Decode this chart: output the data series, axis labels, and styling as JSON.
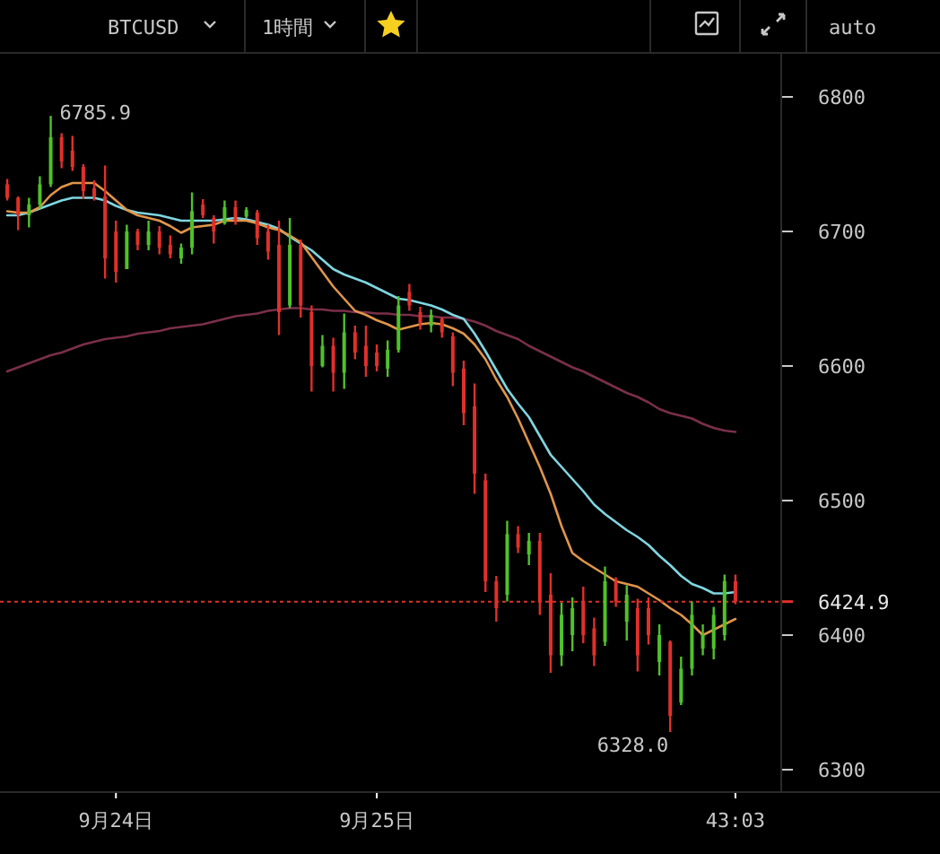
{
  "chart_data": {
    "type": "candlestick",
    "title": "BTCUSD",
    "categories": [
      null,
      null,
      null,
      null,
      null,
      null,
      null,
      null,
      null,
      null,
      "9月24日",
      null,
      null,
      null,
      null,
      null,
      null,
      null,
      null,
      null,
      null,
      null,
      null,
      null,
      null,
      null,
      null,
      null,
      null,
      null,
      null,
      null,
      null,
      null,
      "9月25日",
      null,
      null,
      null,
      null,
      null,
      null,
      null,
      null,
      null,
      null,
      null,
      null,
      null,
      null,
      null,
      null,
      null,
      null,
      null,
      null,
      null,
      null,
      null,
      null,
      null,
      null,
      null,
      null,
      null,
      null,
      null,
      null,
      "43:03"
    ],
    "ohlc": [
      [
        6735,
        6739,
        6723,
        6725
      ],
      [
        6725,
        6726,
        6701,
        6712
      ],
      [
        6712,
        6725,
        6703,
        6720
      ],
      [
        6720,
        6741,
        6717,
        6735
      ],
      [
        6735,
        6785.9,
        6733,
        6770
      ],
      [
        6770,
        6773,
        6747,
        6752
      ],
      [
        6760,
        6771,
        6745,
        6748
      ],
      [
        6748,
        6750,
        6724,
        6730
      ],
      [
        6732,
        6738,
        6723,
        6726
      ],
      [
        6726,
        6749,
        6665,
        6680
      ],
      [
        6700,
        6708,
        6662,
        6670
      ],
      [
        6672,
        6705,
        6672,
        6700
      ],
      [
        6700,
        6702,
        6686,
        6690
      ],
      [
        6690,
        6708,
        6686,
        6700
      ],
      [
        6700,
        6704,
        6683,
        6688
      ],
      [
        6690,
        6697,
        6680,
        6683
      ],
      [
        6680,
        6691,
        6676,
        6688
      ],
      [
        6688,
        6729,
        6683,
        6715
      ],
      [
        6720,
        6724,
        6710,
        6712
      ],
      [
        6710,
        6712,
        6691,
        6700
      ],
      [
        6706,
        6723,
        6705,
        6718
      ],
      [
        6718,
        6723,
        6705,
        6708
      ],
      [
        6711,
        6718,
        6710,
        6716
      ],
      [
        6714,
        6716,
        6690,
        6695
      ],
      [
        6700,
        6705,
        6679,
        6685
      ],
      [
        6690,
        6708,
        6623,
        6640
      ],
      [
        6645,
        6710,
        6643,
        6690
      ],
      [
        6690,
        6694,
        6636,
        6645
      ],
      [
        6640,
        6645,
        6581,
        6600
      ],
      [
        6600,
        6623,
        6599,
        6615
      ],
      [
        6615,
        6621,
        6581,
        6595
      ],
      [
        6595,
        6639,
        6583,
        6625
      ],
      [
        6625,
        6630,
        6605,
        6610
      ],
      [
        6615,
        6630,
        6592,
        6600
      ],
      [
        6610,
        6616,
        6596,
        6600
      ],
      [
        6598,
        6619,
        6592,
        6612
      ],
      [
        6612,
        6652,
        6610,
        6645
      ],
      [
        6655,
        6661,
        6641,
        6645
      ],
      [
        6640,
        6644,
        6627,
        6632
      ],
      [
        6630,
        6642,
        6625,
        6638
      ],
      [
        6635,
        6636,
        6621,
        6625
      ],
      [
        6622,
        6625,
        6585,
        6595
      ],
      [
        6598,
        6604,
        6556,
        6565
      ],
      [
        6570,
        6587,
        6505,
        6520
      ],
      [
        6515,
        6520,
        6432,
        6440
      ],
      [
        6440,
        6444,
        6410,
        6420
      ],
      [
        6430,
        6485,
        6425,
        6475
      ],
      [
        6475,
        6481,
        6461,
        6465
      ],
      [
        6460,
        6476,
        6452,
        6470
      ],
      [
        6470,
        6476,
        6415,
        6425
      ],
      [
        6430,
        6446,
        6372,
        6385
      ],
      [
        6385,
        6424,
        6377,
        6415
      ],
      [
        6400,
        6428,
        6388,
        6420
      ],
      [
        6425,
        6436,
        6394,
        6400
      ],
      [
        6405,
        6413,
        6377,
        6385
      ],
      [
        6395,
        6451,
        6392,
        6440
      ],
      [
        6440,
        6443,
        6421,
        6425
      ],
      [
        6410,
        6437,
        6396,
        6430
      ],
      [
        6420,
        6427,
        6373,
        6385
      ],
      [
        6420,
        6428,
        6393,
        6400
      ],
      [
        6380,
        6408,
        6370,
        6400
      ],
      [
        6395,
        6396,
        6328,
        6340
      ],
      [
        6350,
        6384,
        6348,
        6375
      ],
      [
        6375,
        6425,
        6370,
        6415
      ],
      [
        6390,
        6408,
        6385,
        6400
      ],
      [
        6390,
        6421,
        6382,
        6415
      ],
      [
        6400,
        6445,
        6396,
        6440
      ],
      [
        6440,
        6445,
        6423,
        6424.9
      ]
    ],
    "colors": [
      "#e0302a",
      "#e0302a",
      "#4fc22a",
      "#4fc22a",
      "#4fc22a",
      "#e0302a",
      "#e0302a",
      "#e0302a",
      "#e0302a",
      "#e0302a",
      "#e0302a",
      "#4fc22a",
      "#e0302a",
      "#4fc22a",
      "#e0302a",
      "#e0302a",
      "#4fc22a",
      "#4fc22a",
      "#e0302a",
      "#e0302a",
      "#4fc22a",
      "#e0302a",
      "#4fc22a",
      "#e0302a",
      "#e0302a",
      "#e0302a",
      "#4fc22a",
      "#e0302a",
      "#e0302a",
      "#4fc22a",
      "#e0302a",
      "#4fc22a",
      "#e0302a",
      "#e0302a",
      "#e0302a",
      "#4fc22a",
      "#4fc22a",
      "#e0302a",
      "#e0302a",
      "#4fc22a",
      "#e0302a",
      "#e0302a",
      "#e0302a",
      "#e0302a",
      "#e0302a",
      "#e0302a",
      "#4fc22a",
      "#e0302a",
      "#4fc22a",
      "#e0302a",
      "#e0302a",
      "#4fc22a",
      "#4fc22a",
      "#e0302a",
      "#e0302a",
      "#4fc22a",
      "#e0302a",
      "#4fc22a",
      "#e0302a",
      "#e0302a",
      "#4fc22a",
      "#e0302a",
      "#4fc22a",
      "#4fc22a",
      "#4fc22a",
      "#4fc22a",
      "#4fc22a",
      "#e0302a"
    ],
    "series": [
      {
        "type": "line",
        "color": "#7a2f4a",
        "values": [
          6596,
          6599,
          6602,
          6605,
          6608,
          6610,
          6613,
          6616,
          6618,
          6620,
          6621,
          6622,
          6624,
          6625,
          6626,
          6628,
          6629,
          6630,
          6631,
          6633,
          6635,
          6637,
          6638,
          6639,
          6641,
          6642,
          6643,
          6643,
          6642,
          6642,
          6641,
          6641,
          6640,
          6640,
          6639,
          6639,
          6638,
          6638,
          6637,
          6637,
          6636,
          6636,
          6635,
          6633,
          6630,
          6626,
          6623,
          6620,
          6615,
          6611,
          6607,
          6603,
          6599,
          6596,
          6592,
          6588,
          6584,
          6580,
          6577,
          6573,
          6568,
          6565,
          6563,
          6561,
          6557,
          6554,
          6552,
          6551
        ]
      },
      {
        "type": "line",
        "color": "#7fd6e0",
        "values": [
          6712,
          6712,
          6714,
          6717,
          6720,
          6723,
          6725,
          6725,
          6725,
          6723,
          6719,
          6716,
          6714,
          6713,
          6712,
          6710,
          6708,
          6708,
          6708,
          6708,
          6709,
          6710,
          6709,
          6707,
          6705,
          6702,
          6696,
          6691,
          6686,
          6679,
          6672,
          6668,
          6665,
          6662,
          6658,
          6654,
          6650,
          6649,
          6647,
          6645,
          6642,
          6638,
          6635,
          6624,
          6611,
          6597,
          6583,
          6572,
          6562,
          6548,
          6534,
          6525,
          6516,
          6507,
          6497,
          6490,
          6484,
          6478,
          6473,
          6467,
          6459,
          6452,
          6444,
          6438,
          6435,
          6431,
          6431,
          6432
        ]
      },
      {
        "type": "line",
        "color": "#e0954a",
        "values": [
          6715,
          6714,
          6714,
          6718,
          6727,
          6733,
          6736,
          6736,
          6736,
          6730,
          6723,
          6716,
          6712,
          6710,
          6708,
          6704,
          6699,
          6703,
          6704,
          6705,
          6708,
          6708,
          6708,
          6706,
          6703,
          6701,
          6697,
          6692,
          6681,
          6670,
          6659,
          6650,
          6641,
          6638,
          6634,
          6631,
          6627,
          6629,
          6631,
          6632,
          6631,
          6628,
          6624,
          6616,
          6605,
          6590,
          6577,
          6561,
          6543,
          6525,
          6505,
          6481,
          6461,
          6455,
          6450,
          6445,
          6440,
          6438,
          6436,
          6431,
          6426,
          6420,
          6415,
          6408,
          6400,
          6404,
          6408,
          6412
        ]
      }
    ],
    "ylim": [
      6284,
      6832
    ],
    "yticks": [
      6300,
      6400,
      6500,
      6600,
      6700,
      6800
    ],
    "ref_lines": [
      {
        "axis": "y",
        "value": 6424.9,
        "label": "6424.9",
        "color": "#e0302a",
        "line_style": "dotted"
      }
    ],
    "annotations": [
      "1時間",
      "auto",
      "6785.9",
      "6328.0"
    ]
  }
}
